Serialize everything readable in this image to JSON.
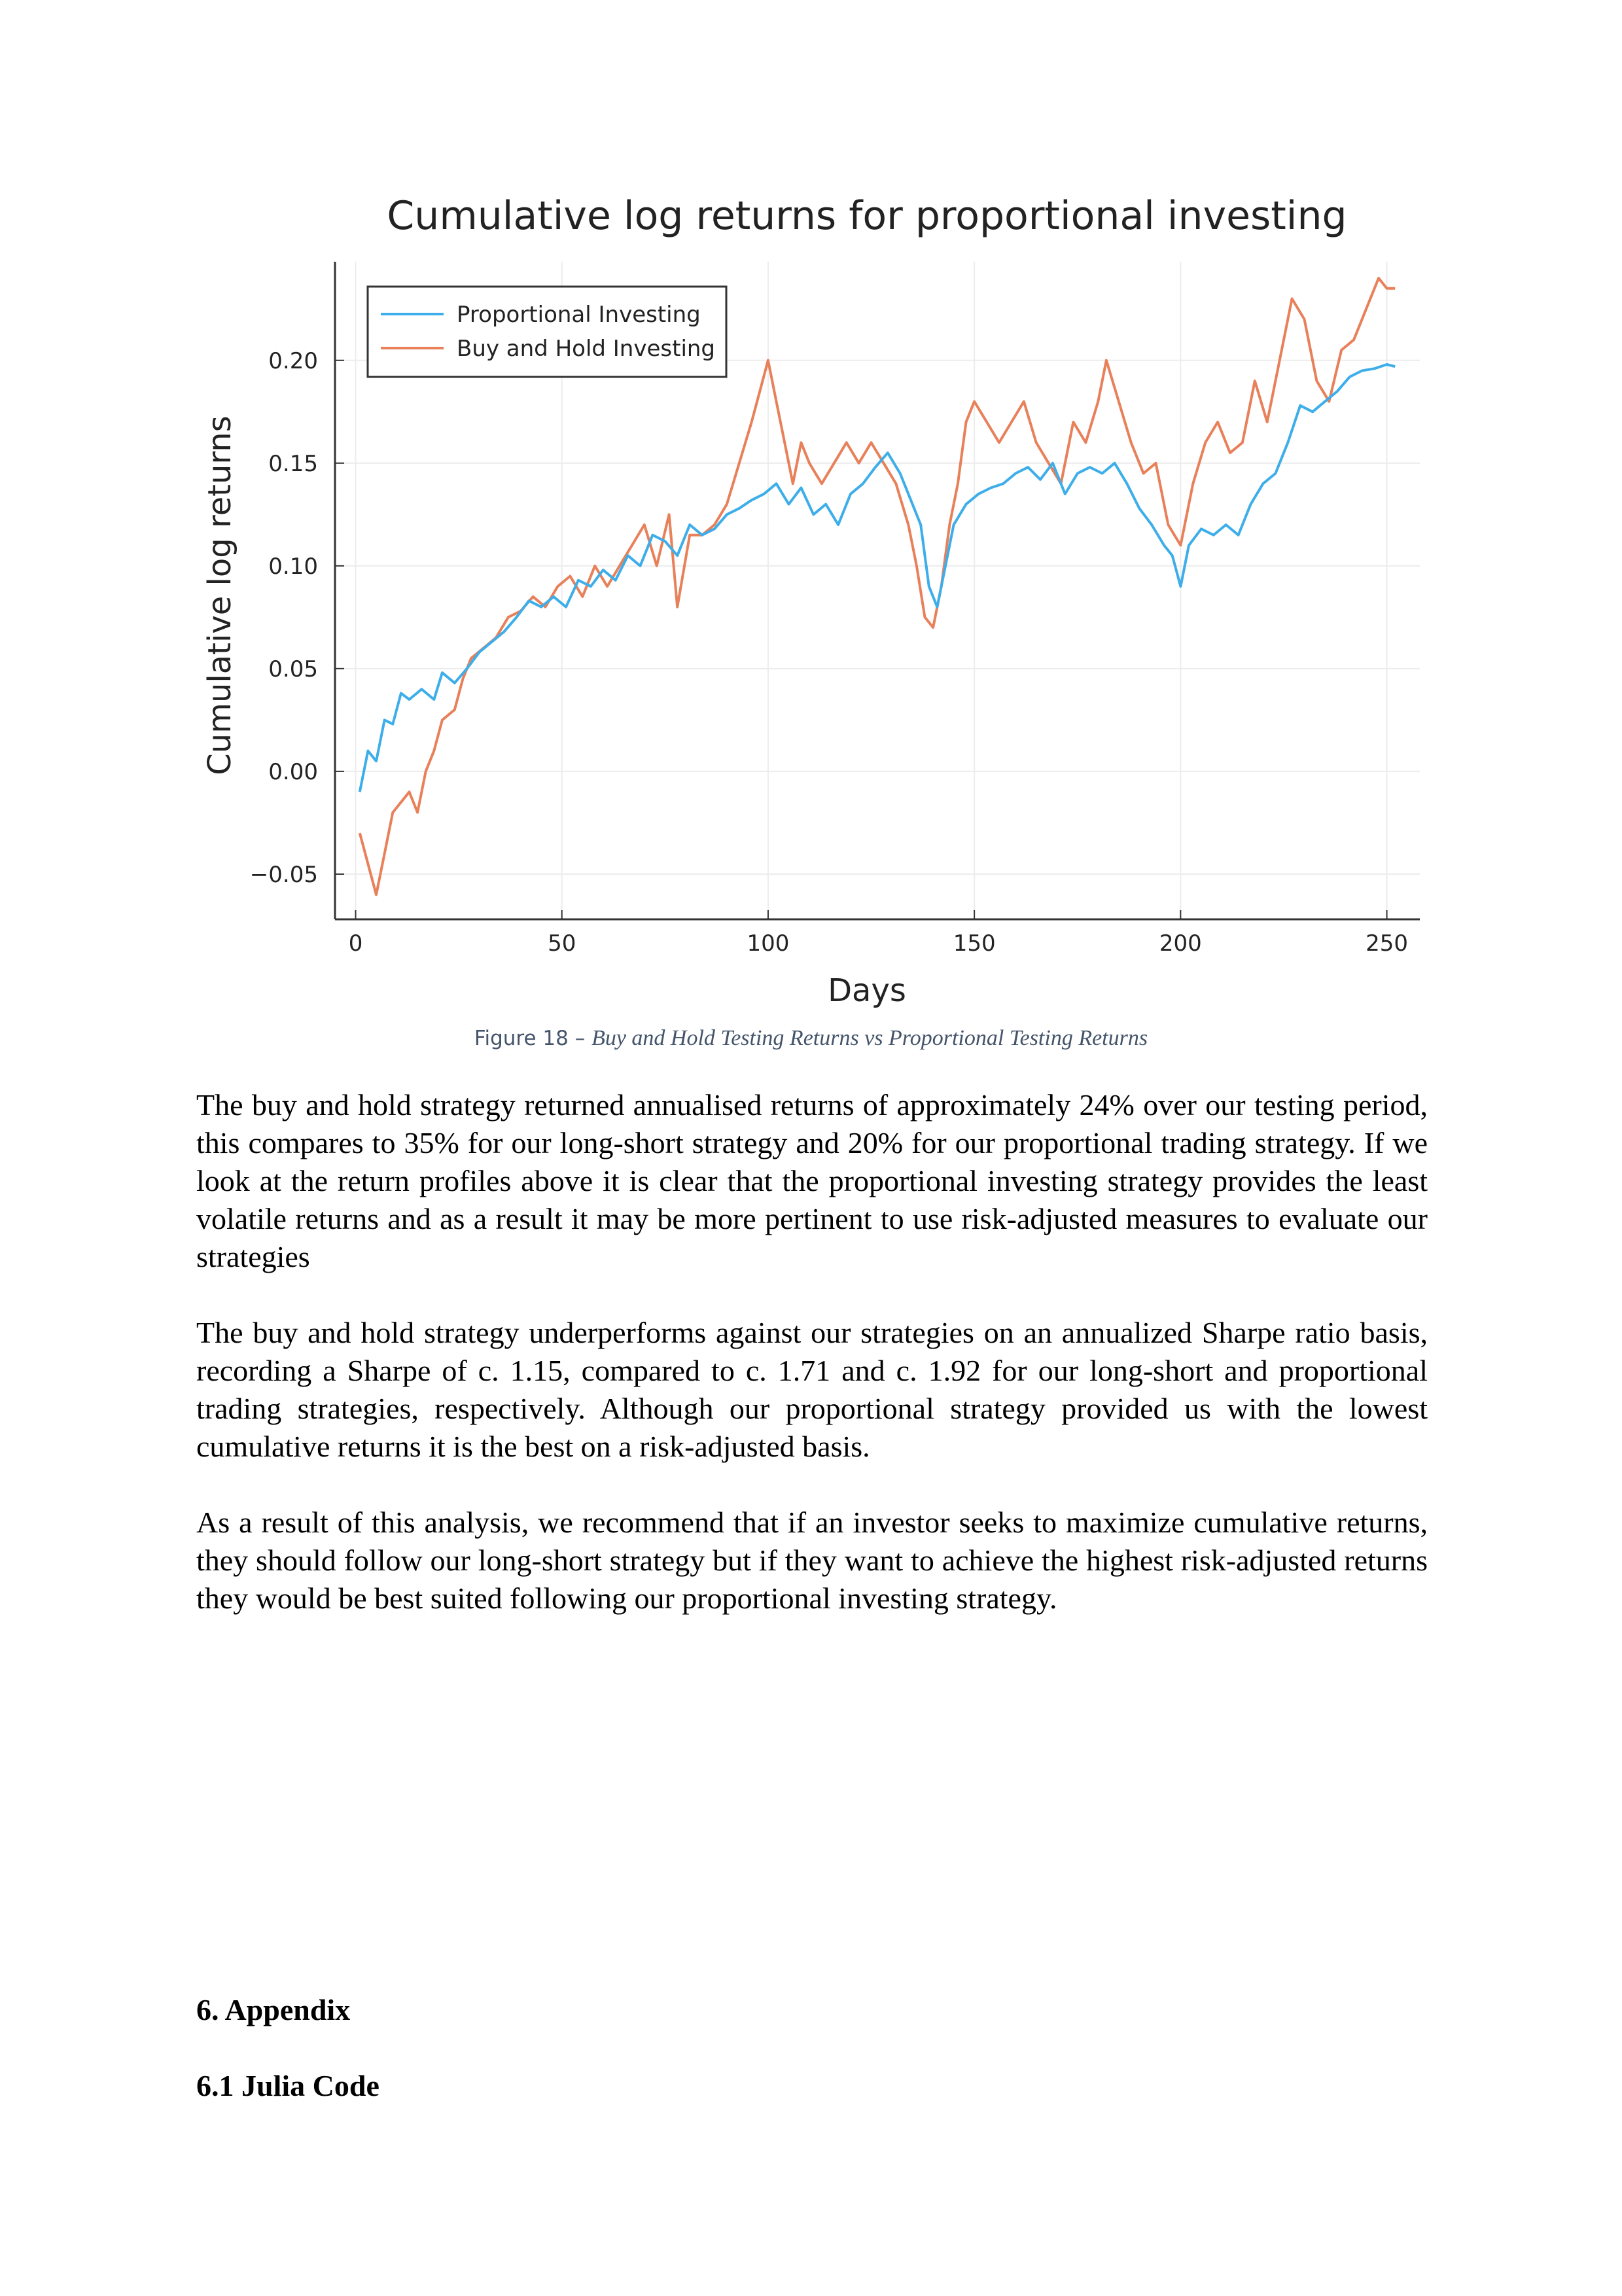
{
  "figure": {
    "caption_label": "Figure 18 – ",
    "caption_text": "Buy and Hold Testing Returns vs Proportional Testing Returns"
  },
  "chart_data": {
    "type": "line",
    "title": "Cumulative log returns for proportional investing",
    "xlabel": "Days",
    "ylabel": "Cumulative log returns",
    "xlim": [
      -5,
      258
    ],
    "ylim": [
      -0.072,
      0.248
    ],
    "x_ticks": [
      0,
      50,
      100,
      150,
      200,
      250
    ],
    "x_tick_labels": [
      "0",
      "50",
      "100",
      "150",
      "200",
      "250"
    ],
    "y_ticks": [
      -0.05,
      0.0,
      0.05,
      0.1,
      0.15,
      0.2
    ],
    "y_tick_labels": [
      "−0.05",
      "0.00",
      "0.05",
      "0.10",
      "0.15",
      "0.20"
    ],
    "grid": true,
    "legend_position": "top-left",
    "series": [
      {
        "name": "Proportional Investing",
        "color": "#3daee9",
        "points": [
          [
            1,
            -0.01
          ],
          [
            3,
            0.01
          ],
          [
            5,
            0.005
          ],
          [
            7,
            0.025
          ],
          [
            9,
            0.023
          ],
          [
            11,
            0.038
          ],
          [
            13,
            0.035
          ],
          [
            16,
            0.04
          ],
          [
            19,
            0.035
          ],
          [
            21,
            0.048
          ],
          [
            24,
            0.043
          ],
          [
            27,
            0.05
          ],
          [
            30,
            0.058
          ],
          [
            33,
            0.063
          ],
          [
            36,
            0.068
          ],
          [
            39,
            0.075
          ],
          [
            42,
            0.083
          ],
          [
            45,
            0.08
          ],
          [
            48,
            0.085
          ],
          [
            51,
            0.08
          ],
          [
            54,
            0.093
          ],
          [
            57,
            0.09
          ],
          [
            60,
            0.098
          ],
          [
            63,
            0.093
          ],
          [
            66,
            0.105
          ],
          [
            69,
            0.1
          ],
          [
            72,
            0.115
          ],
          [
            75,
            0.112
          ],
          [
            78,
            0.105
          ],
          [
            81,
            0.12
          ],
          [
            84,
            0.115
          ],
          [
            87,
            0.118
          ],
          [
            90,
            0.125
          ],
          [
            93,
            0.128
          ],
          [
            96,
            0.132
          ],
          [
            99,
            0.135
          ],
          [
            102,
            0.14
          ],
          [
            105,
            0.13
          ],
          [
            108,
            0.138
          ],
          [
            111,
            0.125
          ],
          [
            114,
            0.13
          ],
          [
            117,
            0.12
          ],
          [
            120,
            0.135
          ],
          [
            123,
            0.14
          ],
          [
            126,
            0.148
          ],
          [
            129,
            0.155
          ],
          [
            132,
            0.145
          ],
          [
            135,
            0.13
          ],
          [
            137,
            0.12
          ],
          [
            139,
            0.09
          ],
          [
            141,
            0.08
          ],
          [
            143,
            0.1
          ],
          [
            145,
            0.12
          ],
          [
            148,
            0.13
          ],
          [
            151,
            0.135
          ],
          [
            154,
            0.138
          ],
          [
            157,
            0.14
          ],
          [
            160,
            0.145
          ],
          [
            163,
            0.148
          ],
          [
            166,
            0.142
          ],
          [
            169,
            0.15
          ],
          [
            172,
            0.135
          ],
          [
            175,
            0.145
          ],
          [
            178,
            0.148
          ],
          [
            181,
            0.145
          ],
          [
            184,
            0.15
          ],
          [
            187,
            0.14
          ],
          [
            190,
            0.128
          ],
          [
            193,
            0.12
          ],
          [
            196,
            0.11
          ],
          [
            198,
            0.105
          ],
          [
            200,
            0.09
          ],
          [
            202,
            0.11
          ],
          [
            205,
            0.118
          ],
          [
            208,
            0.115
          ],
          [
            211,
            0.12
          ],
          [
            214,
            0.115
          ],
          [
            217,
            0.13
          ],
          [
            220,
            0.14
          ],
          [
            223,
            0.145
          ],
          [
            226,
            0.16
          ],
          [
            229,
            0.178
          ],
          [
            232,
            0.175
          ],
          [
            235,
            0.18
          ],
          [
            238,
            0.185
          ],
          [
            241,
            0.192
          ],
          [
            244,
            0.195
          ],
          [
            247,
            0.196
          ],
          [
            250,
            0.198
          ],
          [
            252,
            0.197
          ]
        ]
      },
      {
        "name": "Buy and Hold Investing",
        "color": "#e8805a",
        "points": [
          [
            1,
            -0.03
          ],
          [
            3,
            -0.045
          ],
          [
            5,
            -0.06
          ],
          [
            7,
            -0.04
          ],
          [
            9,
            -0.02
          ],
          [
            11,
            -0.015
          ],
          [
            13,
            -0.01
          ],
          [
            15,
            -0.02
          ],
          [
            17,
            0.0
          ],
          [
            19,
            0.01
          ],
          [
            21,
            0.025
          ],
          [
            24,
            0.03
          ],
          [
            26,
            0.045
          ],
          [
            28,
            0.055
          ],
          [
            31,
            0.06
          ],
          [
            34,
            0.065
          ],
          [
            37,
            0.075
          ],
          [
            40,
            0.078
          ],
          [
            43,
            0.085
          ],
          [
            46,
            0.08
          ],
          [
            49,
            0.09
          ],
          [
            52,
            0.095
          ],
          [
            55,
            0.085
          ],
          [
            58,
            0.1
          ],
          [
            61,
            0.09
          ],
          [
            64,
            0.1
          ],
          [
            67,
            0.11
          ],
          [
            70,
            0.12
          ],
          [
            73,
            0.1
          ],
          [
            76,
            0.125
          ],
          [
            78,
            0.08
          ],
          [
            81,
            0.115
          ],
          [
            84,
            0.115
          ],
          [
            87,
            0.12
          ],
          [
            90,
            0.13
          ],
          [
            93,
            0.15
          ],
          [
            96,
            0.17
          ],
          [
            98,
            0.185
          ],
          [
            100,
            0.2
          ],
          [
            102,
            0.18
          ],
          [
            104,
            0.16
          ],
          [
            106,
            0.14
          ],
          [
            108,
            0.16
          ],
          [
            110,
            0.15
          ],
          [
            113,
            0.14
          ],
          [
            116,
            0.15
          ],
          [
            119,
            0.16
          ],
          [
            122,
            0.15
          ],
          [
            125,
            0.16
          ],
          [
            128,
            0.15
          ],
          [
            131,
            0.14
          ],
          [
            134,
            0.12
          ],
          [
            136,
            0.1
          ],
          [
            138,
            0.075
          ],
          [
            140,
            0.07
          ],
          [
            142,
            0.09
          ],
          [
            144,
            0.12
          ],
          [
            146,
            0.14
          ],
          [
            148,
            0.17
          ],
          [
            150,
            0.18
          ],
          [
            153,
            0.17
          ],
          [
            156,
            0.16
          ],
          [
            159,
            0.17
          ],
          [
            162,
            0.18
          ],
          [
            165,
            0.16
          ],
          [
            168,
            0.15
          ],
          [
            171,
            0.14
          ],
          [
            174,
            0.17
          ],
          [
            177,
            0.16
          ],
          [
            180,
            0.18
          ],
          [
            182,
            0.2
          ],
          [
            185,
            0.18
          ],
          [
            188,
            0.16
          ],
          [
            191,
            0.145
          ],
          [
            194,
            0.15
          ],
          [
            197,
            0.12
          ],
          [
            200,
            0.11
          ],
          [
            203,
            0.14
          ],
          [
            206,
            0.16
          ],
          [
            209,
            0.17
          ],
          [
            212,
            0.155
          ],
          [
            215,
            0.16
          ],
          [
            218,
            0.19
          ],
          [
            221,
            0.17
          ],
          [
            224,
            0.2
          ],
          [
            227,
            0.23
          ],
          [
            230,
            0.22
          ],
          [
            233,
            0.19
          ],
          [
            236,
            0.18
          ],
          [
            239,
            0.205
          ],
          [
            242,
            0.21
          ],
          [
            245,
            0.225
          ],
          [
            248,
            0.24
          ],
          [
            250,
            0.235
          ],
          [
            252,
            0.235
          ]
        ]
      }
    ]
  },
  "paragraphs": [
    "The buy and hold strategy returned annualised returns of approximately 24% over our testing period, this compares to 35% for our long-short strategy and 20% for our proportional trading strategy. If we look at the return profiles above it is clear that the proportional investing strategy provides the least volatile returns and as a result it may be more pertinent to use risk-adjusted measures to evaluate our strategies",
    "The buy and hold strategy underperforms against our strategies on an annualized Sharpe ratio basis, recording a Sharpe of c. 1.15, compared to c. 1.71 and c. 1.92 for our long-short and proportional trading strategies, respectively. Although our proportional strategy provided us with the lowest cumulative returns it is the best on a risk-adjusted basis.",
    "As a result of this analysis, we recommend that if an investor seeks to maximize cumulative returns, they should follow our long-short strategy but if they want to achieve the highest risk-adjusted returns they would be best suited following our proportional investing strategy."
  ],
  "headings": {
    "appendix": "6. Appendix",
    "julia_code": "6.1 Julia Code"
  }
}
